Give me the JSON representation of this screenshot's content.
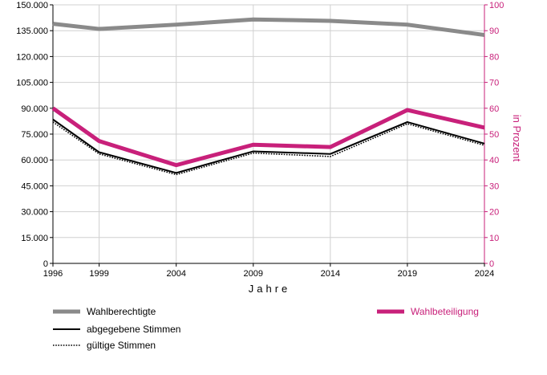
{
  "colors": {
    "wahlberechtigte": "#8a8a8a",
    "abgegebene": "#000000",
    "gueltige": "#000000",
    "wahlbeteiligung": "#c8207a",
    "grid": "#d0d0d0",
    "right_axis": "#c8207a"
  },
  "chart_data": {
    "type": "line",
    "x": [
      1996,
      1999,
      2004,
      2009,
      2014,
      2019,
      2024
    ],
    "x_tick_labels": [
      "1996",
      "1999",
      "2004",
      "2009",
      "2014",
      "2019",
      "2024"
    ],
    "xlabel": "Jahre",
    "ylabel_left": "",
    "ylabel_right": "in Prozent",
    "ylim_left": [
      0,
      150000
    ],
    "ylim_right": [
      0,
      100
    ],
    "y_left_tick_values": [
      0,
      15000,
      30000,
      45000,
      60000,
      75000,
      90000,
      105000,
      120000,
      135000,
      150000
    ],
    "y_left_tick_labels": [
      "0",
      "15.000",
      "30.000",
      "45.000",
      "60.000",
      "75.000",
      "90.000",
      "105.000",
      "120.000",
      "135.000",
      "150.000"
    ],
    "y_right_tick_values": [
      0,
      10,
      20,
      30,
      40,
      50,
      60,
      70,
      80,
      90,
      100
    ],
    "y_right_tick_labels": [
      "0",
      "10",
      "20",
      "30",
      "40",
      "50",
      "60",
      "70",
      "80",
      "90",
      "100"
    ],
    "grid": true,
    "legend_placement": "bottom",
    "series": [
      {
        "key": "wahlberechtigte",
        "name": "Wahlberechtigte",
        "axis": "left",
        "style": "thick-gray",
        "values": [
          139000,
          136000,
          138500,
          141500,
          140700,
          138500,
          132500
        ]
      },
      {
        "key": "abgegebene",
        "name": "abgegebene Stimmen",
        "axis": "left",
        "style": "solid-black",
        "values": [
          83500,
          64500,
          52500,
          65000,
          63500,
          82000,
          69500
        ]
      },
      {
        "key": "gueltige",
        "name": "gültige Stimmen",
        "axis": "left",
        "style": "dotted-black",
        "values": [
          82000,
          63500,
          51500,
          64000,
          62000,
          81000,
          68500
        ]
      },
      {
        "key": "wahlbeteiligung",
        "name": "Wahlbeteiligung",
        "axis": "right",
        "style": "thick-magenta",
        "values": [
          60,
          47.3,
          38,
          45.9,
          45,
          59.3,
          52.5
        ]
      }
    ]
  }
}
